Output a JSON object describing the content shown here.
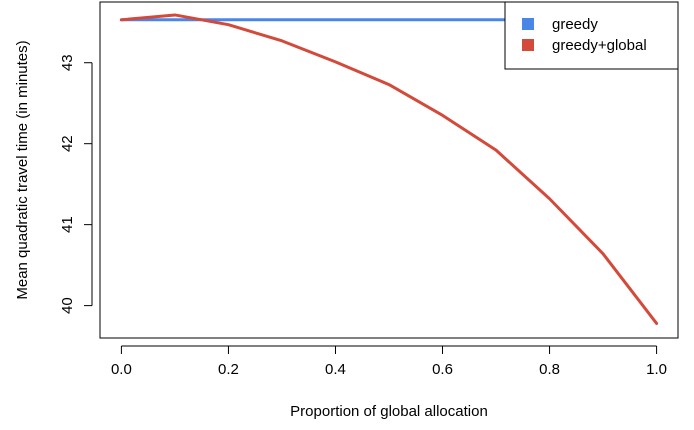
{
  "chart_data": {
    "type": "line",
    "title": "",
    "xlabel": "Proportion of global allocation",
    "ylabel": "Mean quadratic travel time (in minutes)",
    "xlim": [
      -0.04,
      1.04
    ],
    "ylim": [
      39.6,
      43.75
    ],
    "x_ticks": [
      0.0,
      0.2,
      0.4,
      0.6,
      0.8,
      1.0
    ],
    "x_tick_labels": [
      "0.0",
      "0.2",
      "0.4",
      "0.6",
      "0.8",
      "1.0"
    ],
    "y_ticks": [
      40,
      41,
      42,
      43
    ],
    "y_tick_labels": [
      "40",
      "41",
      "42",
      "43"
    ],
    "grid": false,
    "legend_position": "top-right",
    "x": [
      0.0,
      0.1,
      0.2,
      0.3,
      0.4,
      0.5,
      0.6,
      0.7,
      0.8,
      0.9,
      1.0
    ],
    "series": [
      {
        "name": "greedy",
        "color": "#4a86e8",
        "values": [
          43.53,
          43.53,
          43.53,
          43.53,
          43.53,
          43.53,
          43.53,
          43.53,
          43.53,
          43.53,
          43.53
        ]
      },
      {
        "name": "greedy+global",
        "color": "#d34a3b",
        "values": [
          43.53,
          43.59,
          43.47,
          43.27,
          43.01,
          42.73,
          42.35,
          41.92,
          41.32,
          40.64,
          39.78
        ]
      }
    ]
  }
}
